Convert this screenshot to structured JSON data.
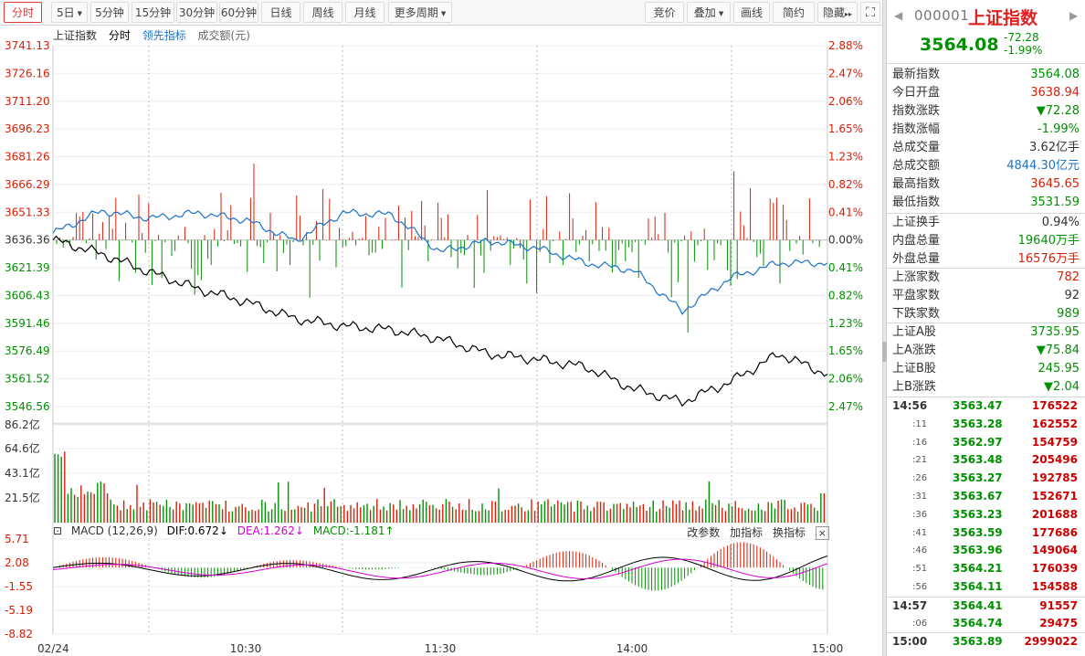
{
  "toolbar": {
    "left": [
      {
        "label": "分时",
        "active": true
      },
      {
        "label": "5日",
        "dropdown": true
      },
      {
        "label": "5分钟"
      },
      {
        "label": "15分钟"
      },
      {
        "label": "30分钟"
      },
      {
        "label": "60分钟"
      },
      {
        "label": "日线"
      },
      {
        "label": "周线"
      },
      {
        "label": "月线"
      },
      {
        "label": "更多周期",
        "dropdown": true
      }
    ],
    "right": [
      {
        "label": "竞价"
      },
      {
        "label": "叠加",
        "dropdown": true
      },
      {
        "label": "画线"
      },
      {
        "label": "简约"
      },
      {
        "label": "隐藏"
      }
    ],
    "collapse_label": "▸▸"
  },
  "legend": {
    "index": "上证指数",
    "period": "分时",
    "lead": "领先指标",
    "volume": "成交额(元)"
  },
  "macd": {
    "label": "MACD (12,26,9)",
    "dif": "DIF:0.672↓",
    "dea": "DEA:1.262↓",
    "macd": "MACD:-1.181↑",
    "change_params": "改参数",
    "add_indicator": "加指标",
    "swap_indicator": "换指标",
    "close": "×"
  },
  "axes": {
    "price_ticks": [
      "3741.13",
      "3726.16",
      "3711.20",
      "3696.23",
      "3681.26",
      "3666.29",
      "3651.33",
      "3636.36",
      "3621.39",
      "3606.43",
      "3591.46",
      "3576.49",
      "3561.52",
      "3546.56"
    ],
    "pct_ticks": [
      "2.88%",
      "2.47%",
      "2.06%",
      "1.65%",
      "1.23%",
      "0.82%",
      "0.41%",
      "0.00%",
      "0.41%",
      "0.82%",
      "1.23%",
      "1.65%",
      "2.06%",
      "2.47%"
    ],
    "vol_ticks": [
      "86.2亿",
      "64.6亿",
      "43.1亿",
      "21.5亿"
    ],
    "macd_ticks": [
      "5.71",
      "2.08",
      "-1.55",
      "-5.19",
      "-8.82"
    ],
    "time_ticks": [
      "02/24",
      "10:30",
      "11:30",
      "14:00",
      "15:00"
    ]
  },
  "colors": {
    "up": "#d81e06",
    "down": "#009000",
    "price_line": "#000000",
    "lead_line": "#1a73c8",
    "dea_line": "#d400d4"
  },
  "chart_data": {
    "type": "line",
    "price_line": {
      "x": [
        "09:30",
        "09:45",
        "10:00",
        "10:15",
        "10:30",
        "10:45",
        "11:00",
        "11:15",
        "11:30",
        "13:15",
        "13:30",
        "13:45",
        "14:00",
        "14:15",
        "14:30",
        "14:45",
        "15:00"
      ],
      "y": [
        3636.4,
        3629,
        3619,
        3610,
        3603,
        3594,
        3590,
        3588,
        3583,
        3575,
        3572,
        3568,
        3556,
        3549,
        3560,
        3575,
        3564
      ]
    },
    "lead_line": {
      "x": [
        "09:30",
        "09:45",
        "10:00",
        "10:15",
        "10:30",
        "10:45",
        "11:00",
        "11:15",
        "11:30",
        "13:15",
        "13:30",
        "13:45",
        "14:00",
        "14:15",
        "14:30",
        "14:45",
        "15:00"
      ],
      "y": [
        3640,
        3652,
        3648,
        3651,
        3647,
        3636,
        3651,
        3650,
        3630,
        3636,
        3632,
        3624,
        3620,
        3598,
        3616,
        3624,
        3624
      ]
    }
  },
  "sidebar": {
    "code": "000001",
    "name": "上证指数",
    "price": "3564.08",
    "change": "-72.28",
    "change_pct": "-1.99%",
    "stats": [
      {
        "label": "最新指数",
        "value": "3564.08",
        "cls": "grn"
      },
      {
        "label": "今日开盘",
        "value": "3638.94",
        "cls": "red"
      },
      {
        "label": "指数涨跌",
        "value": "▼72.28",
        "cls": "grn"
      },
      {
        "label": "指数涨幅",
        "value": "-1.99%",
        "cls": "grn"
      },
      {
        "label": "总成交量",
        "value": "3.62亿手",
        "cls": "dk"
      },
      {
        "label": "总成交额",
        "value": "4844.30亿元",
        "cls": "blu"
      },
      {
        "label": "最高指数",
        "value": "3645.65",
        "cls": "red"
      },
      {
        "label": "最低指数",
        "value": "3531.59",
        "cls": "grn"
      }
    ],
    "stats2": [
      {
        "label": "上证换手",
        "value": "0.94%",
        "cls": "dk"
      },
      {
        "label": "内盘总量",
        "value": "19640万手",
        "cls": "grn"
      },
      {
        "label": "外盘总量",
        "value": "16576万手",
        "cls": "red"
      }
    ],
    "stats3": [
      {
        "label": "上涨家数",
        "value": "782",
        "cls": "red"
      },
      {
        "label": "平盘家数",
        "value": "92",
        "cls": "dk"
      },
      {
        "label": "下跌家数",
        "value": "989",
        "cls": "grn"
      }
    ],
    "stats4": [
      {
        "label": "上证A股",
        "value": "3735.95",
        "cls": "grn"
      },
      {
        "label": "上A涨跌",
        "value": "▼75.84",
        "cls": "grn"
      },
      {
        "label": "上证B股",
        "value": "245.95",
        "cls": "grn"
      },
      {
        "label": "上B涨跌",
        "value": "▼2.04",
        "cls": "grn"
      }
    ],
    "ticks": [
      {
        "t": "14:56",
        "p": "3563.47",
        "v": "176522",
        "major": true
      },
      {
        "t": ":11",
        "p": "3563.28",
        "v": "162552"
      },
      {
        "t": ":16",
        "p": "3562.97",
        "v": "154759"
      },
      {
        "t": ":21",
        "p": "3563.48",
        "v": "205496"
      },
      {
        "t": ":26",
        "p": "3563.27",
        "v": "192785"
      },
      {
        "t": ":31",
        "p": "3563.67",
        "v": "152671"
      },
      {
        "t": ":36",
        "p": "3563.23",
        "v": "201688"
      },
      {
        "t": ":41",
        "p": "3563.59",
        "v": "177686"
      },
      {
        "t": ":46",
        "p": "3563.96",
        "v": "149064"
      },
      {
        "t": ":51",
        "p": "3564.21",
        "v": "176039"
      },
      {
        "t": ":56",
        "p": "3564.11",
        "v": "154588"
      },
      {
        "t": "14:57",
        "p": "3564.41",
        "v": "91557",
        "major": true
      },
      {
        "t": ":06",
        "p": "3564.74",
        "v": "29475"
      },
      {
        "t": "15:00",
        "p": "3563.89",
        "v": "2999022",
        "major": true
      }
    ]
  }
}
